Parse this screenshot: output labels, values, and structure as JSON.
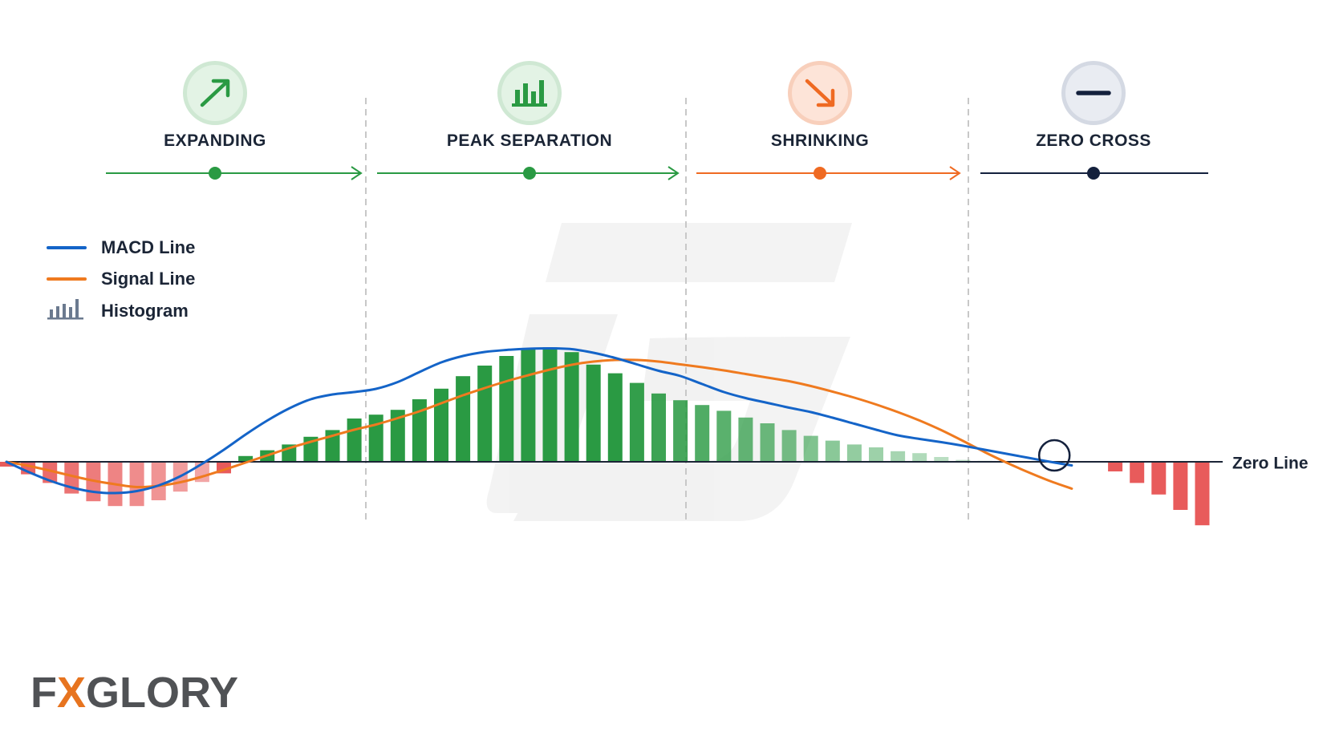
{
  "phases": [
    {
      "id": "expanding",
      "label": "EXPANDING",
      "icon": "arrow-up-right-icon",
      "color": "#2a9a43",
      "badge_bg": "#e3f3e5",
      "badge_ring": "#cfe8d3"
    },
    {
      "id": "peak-separation",
      "label": "PEAK SEPARATION",
      "icon": "bar-chart-icon",
      "color": "#2a9a43",
      "badge_bg": "#e3f3e5",
      "badge_ring": "#cfe8d3"
    },
    {
      "id": "shrinking",
      "label": "SHRINKING",
      "icon": "arrow-down-right-icon",
      "color": "#ef6a22",
      "badge_bg": "#fde4d8",
      "badge_ring": "#f8cfbb"
    },
    {
      "id": "zero-cross",
      "label": "ZERO CROSS",
      "icon": "minus-icon",
      "color": "#14213d",
      "badge_bg": "#e9ecf2",
      "badge_ring": "#d4d9e3"
    }
  ],
  "legend": {
    "macd": "MACD Line",
    "signal": "Signal Line",
    "histogram": "Histogram"
  },
  "zero_label": "Zero Line",
  "brand": {
    "part1": "F",
    "part2": "X",
    "part3": "GLORY"
  },
  "colors": {
    "macd": "#1464c8",
    "signal": "#ef7a1f",
    "hist_pos": "#2a9a43",
    "hist_neg": "#e85b5b",
    "zero_line": "#1b2536",
    "divider": "#c8c8c8"
  },
  "chart_data": {
    "type": "line",
    "x": [
      0,
      1,
      2,
      3,
      4,
      5,
      6,
      7,
      8,
      9,
      10,
      11,
      12,
      13,
      14,
      15,
      16,
      17,
      18,
      19,
      20,
      21,
      22,
      23,
      24,
      25,
      26,
      27,
      28,
      29,
      30,
      31,
      32,
      33,
      34,
      35,
      36,
      37,
      38,
      39,
      40,
      41,
      42,
      43,
      44,
      45,
      46,
      47,
      48,
      49,
      50,
      51,
      52,
      53,
      54,
      55
    ],
    "series": [
      {
        "name": "MACD Line",
        "values": [
          0,
          -2.5,
          -4.7,
          -6.4,
          -7.5,
          -7.8,
          -7.3,
          -5.9,
          -3.6,
          -0.5,
          3.0,
          6.8,
          10.3,
          13.3,
          15.6,
          16.8,
          17.4,
          18.2,
          19.9,
          22.4,
          24.8,
          26.4,
          27.4,
          27.9,
          28.2,
          28.3,
          28.1,
          27.2,
          25.9,
          24.3,
          22.7,
          21.4,
          19.4,
          17.4,
          15.9,
          14.7,
          13.5,
          12.4,
          11.0,
          9.5,
          8.0,
          6.6,
          5.7,
          4.9,
          4.0,
          3.0,
          2.0,
          1.0,
          0.0,
          -0.9,
          -1.9,
          -2.6,
          -3.4,
          -4.1,
          -5.0,
          -5.8
        ]
      },
      {
        "name": "Signal Line",
        "values": [
          0,
          -1.0,
          -2.2,
          -3.5,
          -4.7,
          -5.6,
          -6.3,
          -6.0,
          -5.1,
          -3.7,
          -2.0,
          -0.2,
          1.6,
          3.4,
          5.0,
          6.5,
          8.0,
          9.3,
          10.9,
          12.6,
          14.6,
          16.6,
          18.4,
          20.1,
          21.6,
          23.0,
          24.2,
          25.0,
          25.4,
          25.4,
          25.0,
          24.3,
          23.6,
          22.8,
          21.9,
          21.0,
          20.1,
          18.9,
          17.5,
          16.0,
          14.3,
          12.4,
          10.3,
          7.9,
          5.2,
          2.4,
          -0.2,
          -2.6,
          -4.8,
          -6.7,
          -8.2,
          -9.3,
          -10.0,
          -10.5,
          -10.8,
          -11.0
        ]
      },
      {
        "name": "Histogram",
        "values": [
          -0.5,
          -1.3,
          -2.2,
          -3.3,
          -4.1,
          -4.6,
          -4.6,
          -4.0,
          -3.1,
          -2.1,
          -1.2,
          0.6,
          1.2,
          1.8,
          2.6,
          3.3,
          4.5,
          4.9,
          5.4,
          6.5,
          7.6,
          8.9,
          10.0,
          11.0,
          11.8,
          11.9,
          11.4,
          10.1,
          9.2,
          8.2,
          7.1,
          6.4,
          5.9,
          5.3,
          4.6,
          4.0,
          3.3,
          2.7,
          2.2,
          1.8,
          1.5,
          1.1,
          0.9,
          0.5,
          0.2,
          0.1,
          0,
          0,
          0,
          0,
          0,
          -1.0,
          -2.2,
          -3.4,
          -5.0,
          -6.6
        ]
      }
    ],
    "zero_cross_index": 49,
    "grid": false
  }
}
